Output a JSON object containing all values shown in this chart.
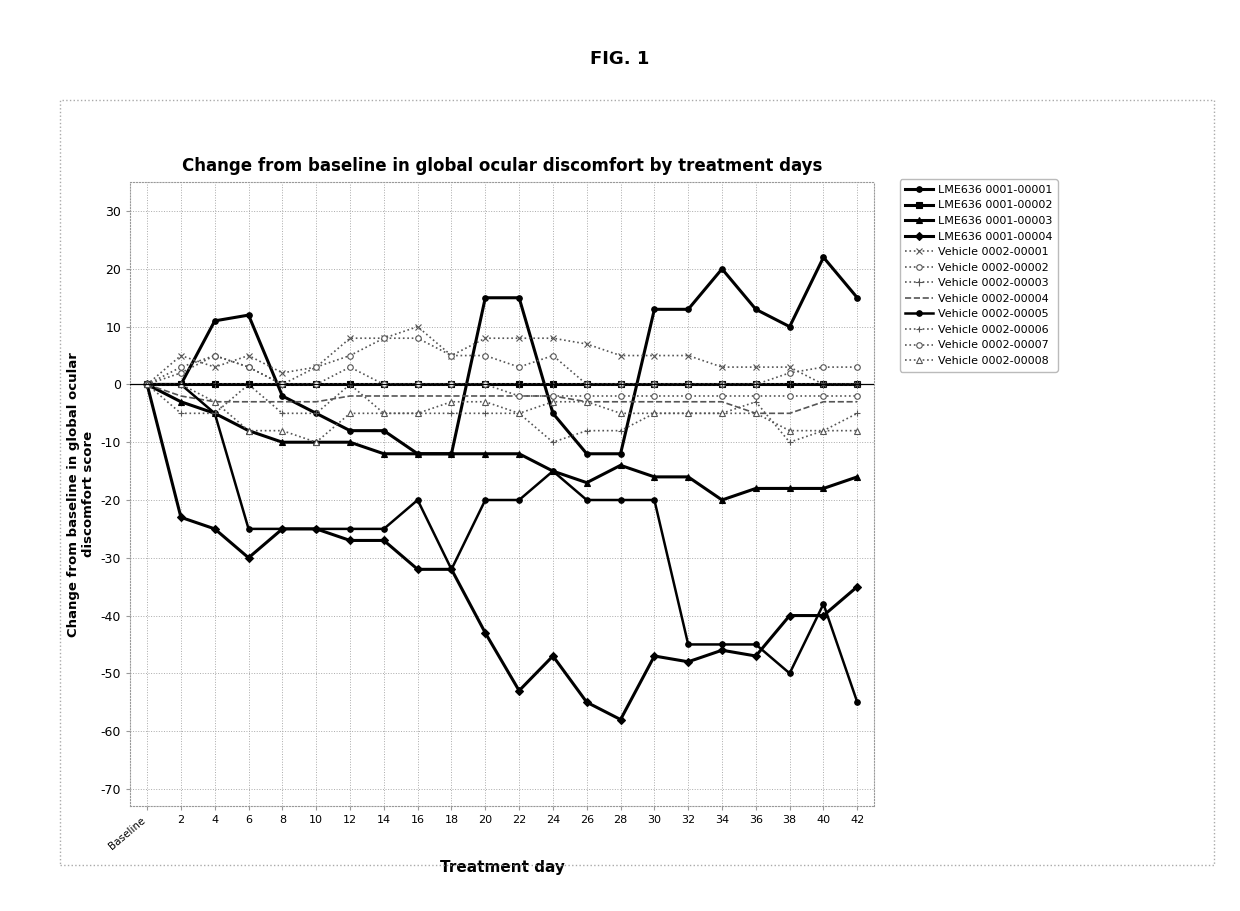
{
  "title": "Change from baseline in global ocular discomfort by treatment days",
  "xlabel": "Treatment day",
  "ylabel": "Change from baseline in global ocular\ndiscomfort score",
  "fig_label": "FIG. 1",
  "ylim": [
    -73,
    35
  ],
  "yticks": [
    -70,
    -60,
    -50,
    -40,
    -30,
    -20,
    -10,
    0,
    10,
    20,
    30
  ],
  "xtick_labels": [
    "Baseline",
    "2",
    "4",
    "6",
    "8",
    "10",
    "12",
    "14",
    "16",
    "18",
    "20",
    "22",
    "24",
    "26",
    "28",
    "30",
    "32",
    "34",
    "36",
    "38",
    "40",
    "42"
  ],
  "series": [
    {
      "label": "LME636 0001-00001",
      "linestyle": "-",
      "marker": "o",
      "markersize": 4,
      "linewidth": 2.2,
      "color": "#000000",
      "values": [
        0,
        0,
        11,
        12,
        -2,
        -5,
        -8,
        -8,
        -12,
        -12,
        15,
        15,
        -5,
        -12,
        -12,
        13,
        13,
        20,
        13,
        10,
        22,
        15
      ]
    },
    {
      "label": "LME636 0001-00002",
      "linestyle": "-",
      "marker": "s",
      "markersize": 4,
      "linewidth": 2.2,
      "color": "#000000",
      "values": [
        0,
        0,
        0,
        0,
        0,
        0,
        0,
        0,
        0,
        0,
        0,
        0,
        0,
        0,
        0,
        0,
        0,
        0,
        0,
        0,
        0,
        0
      ]
    },
    {
      "label": "LME636 0001-00003",
      "linestyle": "-",
      "marker": "^",
      "markersize": 5,
      "linewidth": 2.2,
      "color": "#000000",
      "values": [
        0,
        -3,
        -5,
        -8,
        -10,
        -10,
        -10,
        -12,
        -12,
        -12,
        -12,
        -12,
        -15,
        -17,
        -14,
        -16,
        -16,
        -20,
        -18,
        -18,
        -18,
        -16
      ]
    },
    {
      "label": "LME636 0001-00004",
      "linestyle": "-",
      "marker": "D",
      "markersize": 4,
      "linewidth": 2.2,
      "color": "#000000",
      "values": [
        0,
        -23,
        -25,
        -30,
        -25,
        -25,
        -27,
        -27,
        -32,
        -32,
        -43,
        -53,
        -47,
        -55,
        -58,
        -47,
        -48,
        -46,
        -47,
        -40,
        -40,
        -35
      ]
    },
    {
      "label": "Vehicle 0002-00001",
      "linestyle": ":",
      "marker": "x",
      "markersize": 5,
      "linewidth": 1.2,
      "color": "#555555",
      "values": [
        0,
        5,
        3,
        5,
        2,
        3,
        8,
        8,
        10,
        5,
        8,
        8,
        8,
        7,
        5,
        5,
        5,
        3,
        3,
        3,
        0,
        0
      ]
    },
    {
      "label": "Vehicle 0002-00002",
      "linestyle": ":",
      "marker": "o",
      "markersize": 4,
      "linewidth": 1.2,
      "color": "#555555",
      "values": [
        0,
        3,
        5,
        3,
        0,
        3,
        5,
        8,
        8,
        5,
        5,
        3,
        5,
        0,
        0,
        0,
        0,
        0,
        0,
        2,
        3,
        3
      ]
    },
    {
      "label": "Vehicle 0002-00003",
      "linestyle": ":",
      "marker": "+",
      "markersize": 6,
      "linewidth": 1.2,
      "color": "#555555",
      "values": [
        0,
        0,
        0,
        0,
        0,
        0,
        0,
        0,
        0,
        0,
        0,
        0,
        0,
        0,
        0,
        0,
        0,
        0,
        0,
        0,
        0,
        0
      ]
    },
    {
      "label": "Vehicle 0002-00004",
      "linestyle": "--",
      "marker": "None",
      "markersize": 4,
      "linewidth": 1.2,
      "color": "#555555",
      "values": [
        0,
        -2,
        -3,
        -3,
        -3,
        -3,
        -2,
        -2,
        -2,
        -2,
        -2,
        -2,
        -2,
        -3,
        -3,
        -3,
        -3,
        -3,
        -5,
        -5,
        -3,
        -3
      ]
    },
    {
      "label": "Vehicle 0002-00005",
      "linestyle": "-",
      "marker": "o",
      "markersize": 4,
      "linewidth": 1.8,
      "color": "#000000",
      "values": [
        0,
        0,
        -5,
        -25,
        -25,
        -25,
        -25,
        -25,
        -20,
        -32,
        -20,
        -20,
        -15,
        -20,
        -20,
        -20,
        -45,
        -45,
        -45,
        -50,
        -38,
        -55
      ]
    },
    {
      "label": "Vehicle 0002-00006",
      "linestyle": ":",
      "marker": "+",
      "markersize": 5,
      "linewidth": 1.2,
      "color": "#555555",
      "values": [
        0,
        -5,
        -5,
        0,
        -5,
        -5,
        0,
        -5,
        -5,
        -5,
        -5,
        -5,
        -10,
        -8,
        -8,
        -5,
        -5,
        -5,
        -3,
        -10,
        -8,
        -5
      ]
    },
    {
      "label": "Vehicle 0002-00007",
      "linestyle": ":",
      "marker": "o",
      "markersize": 4,
      "linewidth": 1.2,
      "color": "#555555",
      "values": [
        0,
        2,
        5,
        3,
        0,
        0,
        3,
        0,
        0,
        0,
        0,
        -2,
        -2,
        -2,
        -2,
        -2,
        -2,
        -2,
        -2,
        -2,
        -2,
        -2
      ]
    },
    {
      "label": "Vehicle 0002-00008",
      "linestyle": ":",
      "marker": "^",
      "markersize": 4,
      "linewidth": 1.2,
      "color": "#555555",
      "values": [
        0,
        0,
        -3,
        -8,
        -8,
        -10,
        -5,
        -5,
        -5,
        -3,
        -3,
        -5,
        -3,
        -3,
        -5,
        -5,
        -5,
        -5,
        -5,
        -8,
        -8,
        -8
      ]
    }
  ]
}
